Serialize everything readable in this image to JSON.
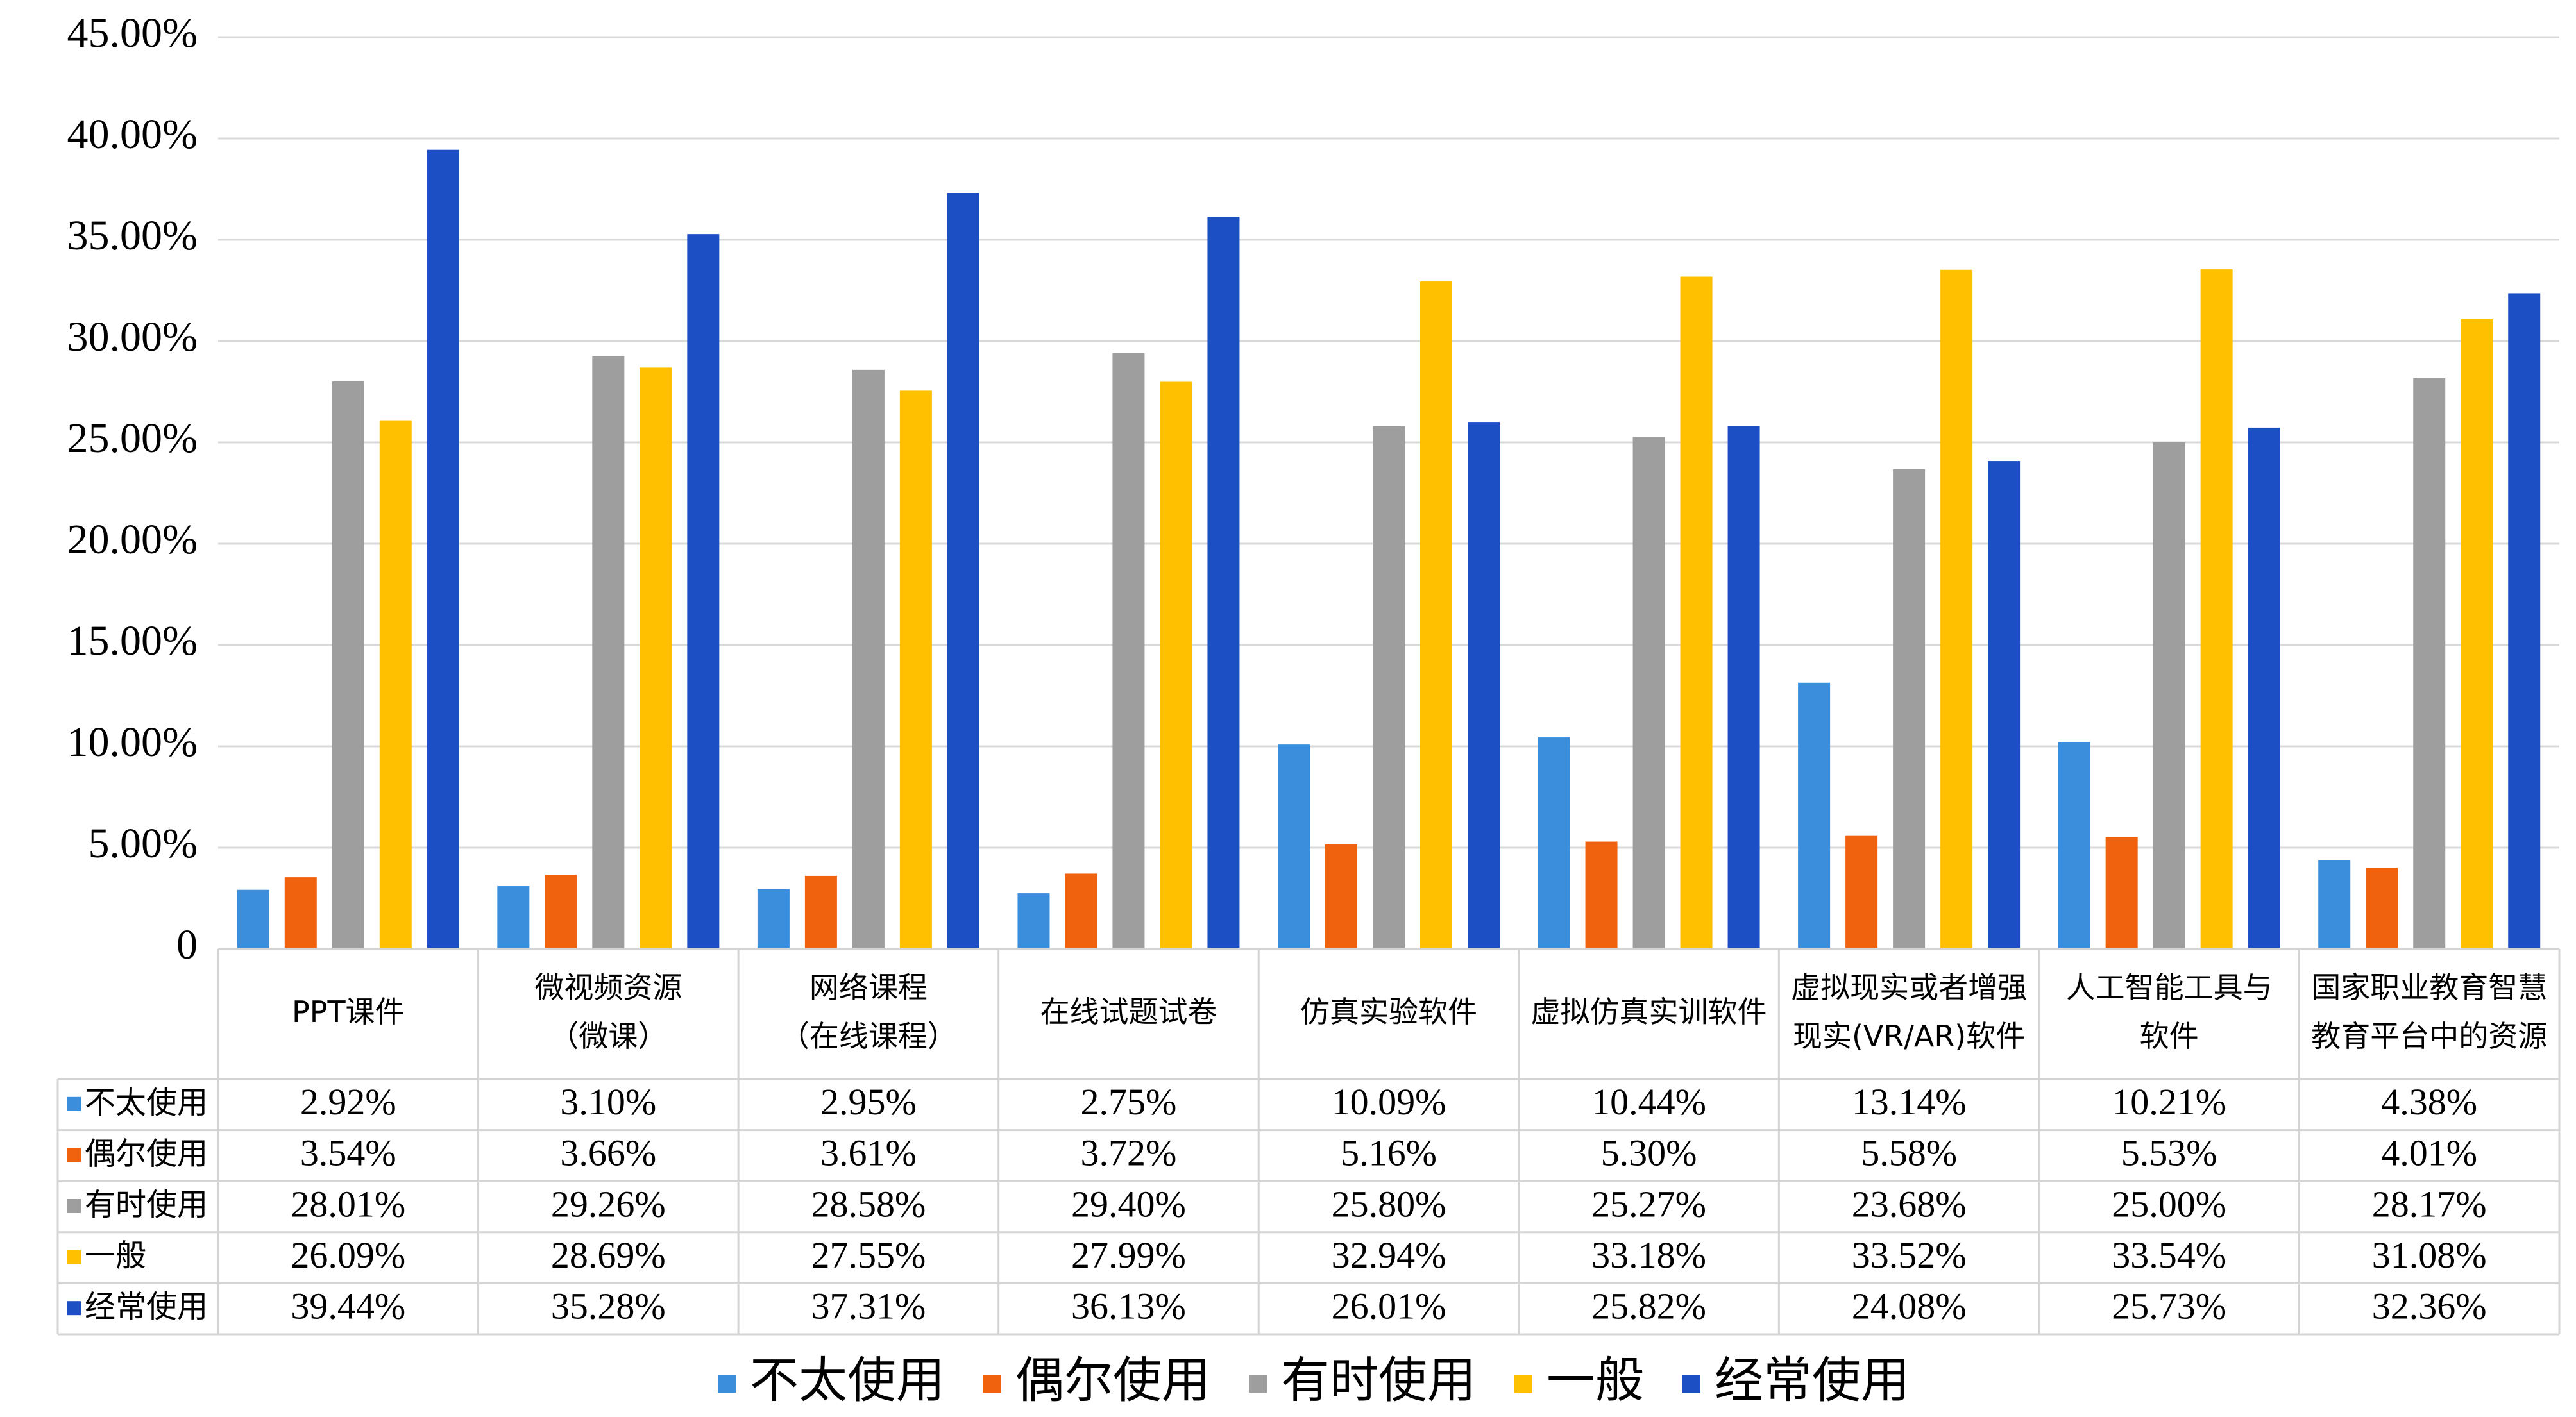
{
  "chart_data": {
    "type": "bar",
    "ylim": [
      0,
      45
    ],
    "y_ticks": [
      "0",
      "5.00%",
      "10.00%",
      "15.00%",
      "20.00%",
      "25.00%",
      "30.00%",
      "35.00%",
      "40.00%",
      "45.00%"
    ],
    "grid": true,
    "legend_position": "bottom",
    "categories": [
      [
        "PPT课件"
      ],
      [
        "微视频资源",
        "（微课）"
      ],
      [
        "网络课程",
        "（在线课程）"
      ],
      [
        "在线试题试卷"
      ],
      [
        "仿真实验软件"
      ],
      [
        "虚拟仿真实训软件"
      ],
      [
        "虚拟现实或者增强",
        "现实(VR/AR)软件"
      ],
      [
        "人工智能工具与",
        "软件"
      ],
      [
        "国家职业教育智慧",
        "教育平台中的资源"
      ]
    ],
    "series": [
      {
        "name": "不太使用",
        "color": "#3A8EDB",
        "values": [
          2.92,
          3.1,
          2.95,
          2.75,
          10.09,
          10.44,
          13.14,
          10.21,
          4.38
        ],
        "labels": [
          "2.92%",
          "3.10%",
          "2.95%",
          "2.75%",
          "10.09%",
          "10.44%",
          "13.14%",
          "10.21%",
          "4.38%"
        ]
      },
      {
        "name": "偶尔使用",
        "color": "#F0620E",
        "values": [
          3.54,
          3.66,
          3.61,
          3.72,
          5.16,
          5.3,
          5.58,
          5.53,
          4.01
        ],
        "labels": [
          "3.54%",
          "3.66%",
          "3.61%",
          "3.72%",
          "5.16%",
          "5.30%",
          "5.58%",
          "5.53%",
          "4.01%"
        ]
      },
      {
        "name": "有时使用",
        "color": "#9E9E9E",
        "values": [
          28.01,
          29.26,
          28.58,
          29.4,
          25.8,
          25.27,
          23.68,
          25.0,
          28.17
        ],
        "labels": [
          "28.01%",
          "29.26%",
          "28.58%",
          "29.40%",
          "25.80%",
          "25.27%",
          "23.68%",
          "25.00%",
          "28.17%"
        ]
      },
      {
        "name": "一般",
        "color": "#FFC000",
        "values": [
          26.09,
          28.69,
          27.55,
          27.99,
          32.94,
          33.18,
          33.52,
          33.54,
          31.08
        ],
        "labels": [
          "26.09%",
          "28.69%",
          "27.55%",
          "27.99%",
          "32.94%",
          "33.18%",
          "33.52%",
          "33.54%",
          "31.08%"
        ]
      },
      {
        "name": "经常使用",
        "color": "#1D4FC4",
        "values": [
          39.44,
          35.28,
          37.31,
          36.13,
          26.01,
          25.82,
          24.08,
          25.73,
          32.36
        ],
        "labels": [
          "39.44%",
          "35.28%",
          "37.31%",
          "36.13%",
          "26.01%",
          "25.82%",
          "24.08%",
          "25.73%",
          "32.36%"
        ]
      }
    ]
  }
}
